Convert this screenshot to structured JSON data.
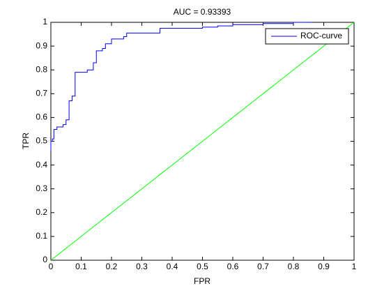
{
  "chart_data": {
    "type": "line",
    "title": "AUC = 0.93393",
    "x_label": "FPR",
    "y_label": "TPR",
    "xlim": [
      0,
      1
    ],
    "ylim": [
      0,
      1
    ],
    "xticks": [
      0,
      0.1,
      0.2,
      0.3,
      0.4,
      0.5,
      0.6,
      0.7,
      0.8,
      0.9,
      1
    ],
    "yticks": [
      0,
      0.1,
      0.2,
      0.3,
      0.4,
      0.5,
      0.6,
      0.7,
      0.8,
      0.9,
      1
    ],
    "grid": false,
    "legend": "top-right",
    "series": [
      {
        "name": "ROC-curve",
        "color": "#0000ff",
        "x": [
          0,
          0,
          0.005,
          0.005,
          0.01,
          0.01,
          0.02,
          0.02,
          0.04,
          0.04,
          0.05,
          0.05,
          0.06,
          0.06,
          0.07,
          0.07,
          0.08,
          0.08,
          0.12,
          0.12,
          0.14,
          0.14,
          0.15,
          0.15,
          0.17,
          0.17,
          0.18,
          0.18,
          0.2,
          0.2,
          0.24,
          0.24,
          0.25,
          0.25,
          0.36,
          0.36,
          0.5,
          0.5,
          0.55,
          0.55,
          0.6,
          0.6,
          0.7,
          0.7,
          0.8,
          0.8,
          0.86
        ],
        "values": [
          0.46,
          0.5,
          0.5,
          0.51,
          0.51,
          0.55,
          0.55,
          0.56,
          0.56,
          0.57,
          0.57,
          0.59,
          0.59,
          0.67,
          0.67,
          0.69,
          0.69,
          0.79,
          0.79,
          0.8,
          0.8,
          0.83,
          0.83,
          0.88,
          0.88,
          0.89,
          0.89,
          0.91,
          0.91,
          0.93,
          0.93,
          0.94,
          0.94,
          0.955,
          0.955,
          0.975,
          0.975,
          0.98,
          0.98,
          0.985,
          0.985,
          0.99,
          0.99,
          0.995,
          0.995,
          1,
          1
        ]
      }
    ],
    "reference_line": {
      "color": "#00ff00",
      "x": [
        0,
        1
      ],
      "values": [
        0,
        1
      ]
    }
  }
}
